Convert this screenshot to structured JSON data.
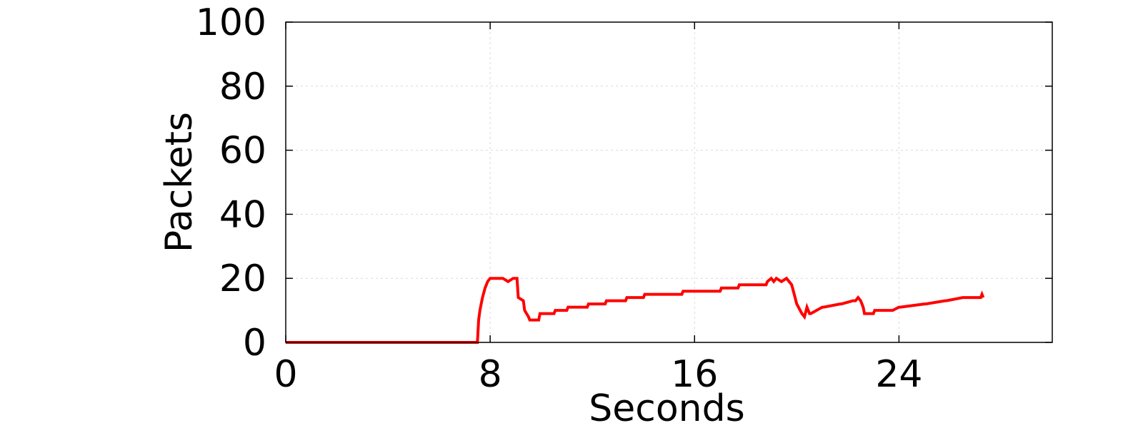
{
  "chart_data": {
    "type": "line",
    "title": "",
    "xlabel": "Seconds",
    "ylabel": "Packets",
    "xlim": [
      0,
      30
    ],
    "ylim": [
      0,
      100
    ],
    "xticks": [
      0,
      8,
      16,
      24
    ],
    "yticks": [
      0,
      20,
      40,
      60,
      80,
      100
    ],
    "grid": true,
    "legend": "none",
    "series": [
      {
        "color": "#ff0000",
        "x": [
          0,
          7.5,
          7.55,
          7.6,
          7.7,
          7.8,
          7.9,
          8.0,
          8.05,
          8.1,
          8.3,
          8.5,
          8.7,
          8.9,
          9.0,
          9.05,
          9.1,
          9.3,
          9.35,
          9.5,
          9.55,
          9.9,
          9.95,
          10.5,
          10.55,
          11.0,
          11.05,
          11.8,
          11.85,
          12.5,
          12.55,
          13.3,
          13.35,
          14.0,
          14.05,
          14.8,
          14.85,
          15.5,
          15.55,
          16.3,
          16.35,
          17.0,
          17.05,
          17.7,
          17.75,
          18.3,
          18.35,
          18.8,
          18.85,
          19.0,
          19.1,
          19.2,
          19.4,
          19.6,
          19.8,
          19.9,
          20.0,
          20.2,
          20.3,
          20.4,
          20.5,
          20.55,
          21.0,
          21.05,
          21.7,
          21.75,
          22.2,
          22.3,
          22.4,
          22.5,
          22.6,
          22.65,
          23.0,
          23.05,
          23.7,
          23.75,
          24.0,
          24.05,
          25.0,
          25.05,
          25.8,
          25.85,
          26.5,
          26.55,
          27.2,
          27.25,
          27.3
        ],
        "y": [
          0,
          0,
          7,
          10,
          14,
          17,
          19,
          20,
          20,
          20,
          20,
          20,
          19,
          20,
          20,
          20,
          14,
          13,
          10,
          8,
          7,
          7,
          9,
          9,
          10,
          10,
          11,
          11,
          12,
          12,
          13,
          13,
          14,
          14,
          15,
          15,
          15,
          15,
          16,
          16,
          16,
          16,
          17,
          17,
          18,
          18,
          18,
          18,
          19,
          20,
          19,
          20,
          19,
          20,
          18,
          15,
          12,
          9,
          8,
          11,
          9,
          9,
          11,
          11,
          12,
          12,
          13,
          13,
          14,
          13,
          11,
          9,
          9,
          10,
          10,
          10,
          11,
          11,
          12,
          12,
          13,
          13,
          14,
          14,
          14,
          15,
          14
        ]
      }
    ]
  }
}
